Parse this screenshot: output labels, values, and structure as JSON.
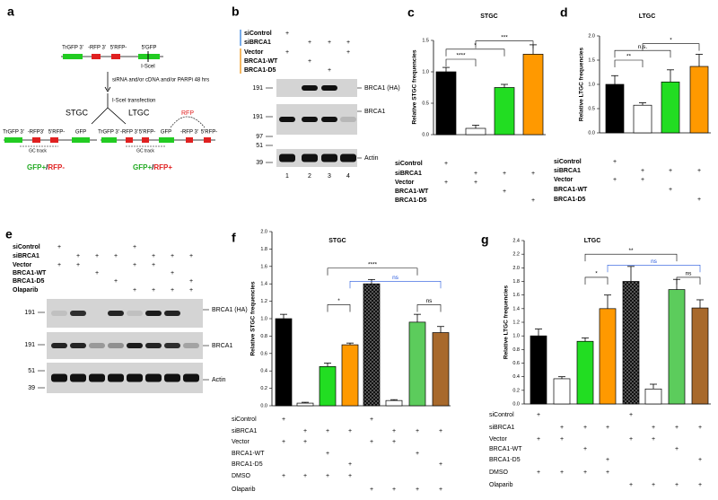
{
  "diagram_a": {
    "letter": "a",
    "reporter": [
      "TrGFP 3'",
      "-RFP 3'",
      "5'RFP-",
      "5'GFP"
    ],
    "site": "I-SceI",
    "steps": [
      "siRNA and/or cDNA and/or PARPi 48 hrs",
      "I-SceI transfection"
    ],
    "outcomes": [
      {
        "label": "STGC",
        "segments": [
          "TrGFP 3'",
          "-RFP3'",
          "5'RFP-",
          "GFP"
        ],
        "track": "GC track",
        "result": [
          "GFP+",
          "/",
          "RFP-"
        ]
      },
      {
        "label": "LTGC",
        "segments": [
          "TrGFP 3'",
          "-RFP 3'",
          "5'RFP-",
          "GFP",
          "-RFP 3'",
          "5'RFP-"
        ],
        "track": "GC track",
        "insert": "RFP",
        "result": [
          "GFP+",
          "/",
          "RFP+"
        ]
      }
    ]
  },
  "blot_b": {
    "letter": "b",
    "conditions": [
      {
        "label": "siControl",
        "marks": [
          "+",
          null,
          null,
          null
        ]
      },
      {
        "label": "siBRCA1",
        "marks": [
          null,
          "+",
          "+",
          "+"
        ]
      },
      {
        "label": "Vector",
        "marks": [
          "+",
          null,
          null,
          "+"
        ]
      },
      {
        "label": "BRCA1-WT",
        "marks": [
          null,
          "+",
          null,
          null
        ]
      },
      {
        "label": "BRCA1-D5",
        "marks": [
          null,
          null,
          "+",
          null
        ]
      }
    ],
    "markers": [
      "191",
      "191",
      "97",
      "51",
      "39"
    ],
    "bands": [
      "BRCA1 (HA)",
      "BRCA1",
      "Actin"
    ],
    "lanes": [
      "1",
      "2",
      "3",
      "4"
    ]
  },
  "blot_e": {
    "letter": "e",
    "conditions": [
      {
        "label": "siControl",
        "marks": [
          "+",
          null,
          null,
          null,
          "+",
          null,
          null,
          null
        ]
      },
      {
        "label": "siBRCA1",
        "marks": [
          null,
          "+",
          "+",
          "+",
          null,
          "+",
          "+",
          "+"
        ]
      },
      {
        "label": "Vector",
        "marks": [
          "+",
          "+",
          null,
          null,
          "+",
          "+",
          null,
          null
        ]
      },
      {
        "label": "BRCA1-WT",
        "marks": [
          null,
          null,
          "+",
          null,
          null,
          null,
          "+",
          null
        ]
      },
      {
        "label": "BRCA1-D5",
        "marks": [
          null,
          null,
          null,
          "+",
          null,
          null,
          null,
          "+"
        ]
      },
      {
        "label": "Olaparib",
        "marks": [
          null,
          null,
          null,
          null,
          "+",
          "+",
          "+",
          "+"
        ]
      }
    ],
    "markers": [
      "191",
      "191",
      "51",
      "39"
    ],
    "bands": [
      "BRCA1 (HA)",
      "BRCA1",
      "Actin"
    ]
  },
  "chart_data": [
    {
      "type": "bar",
      "letter": "c",
      "title": "STGC",
      "ylabel": "Relative STGC frequencies",
      "values": [
        1.0,
        0.1,
        0.75,
        1.28
      ],
      "errors": [
        0.07,
        0.05,
        0.05,
        0.15
      ],
      "colors": [
        "#000000",
        "#ffffff",
        "#22dd22",
        "#ff9900"
      ],
      "ylim": [
        0,
        1.5
      ],
      "yticks": [
        {
          "value": 0,
          "label": "0.0"
        },
        0.5,
        {
          "value": 1,
          "label": "1.0"
        },
        1.5
      ],
      "annotations": [
        "*",
        "****",
        "***"
      ],
      "conditions": [
        {
          "label": "siControl",
          "marks": [
            "+",
            null,
            null,
            null
          ]
        },
        {
          "label": "siBRCA1",
          "marks": [
            null,
            "+",
            "+",
            "+"
          ]
        },
        {
          "label": "Vector",
          "marks": [
            "+",
            "+",
            null,
            null
          ]
        },
        {
          "label": "BRCA1-WT",
          "marks": [
            null,
            null,
            "+",
            null
          ]
        },
        {
          "label": "BRCA1-D5",
          "marks": [
            null,
            null,
            null,
            "+"
          ]
        }
      ]
    },
    {
      "type": "bar",
      "letter": "d",
      "title": "LTGC",
      "ylabel": "Relative LTGC frequencies",
      "values": [
        1.0,
        0.57,
        1.05,
        1.37
      ],
      "errors": [
        0.18,
        0.05,
        0.25,
        0.25
      ],
      "colors": [
        "#000000",
        "#ffffff",
        "#22dd22",
        "#ff9900"
      ],
      "ylim": [
        0,
        2
      ],
      "yticks": [
        {
          "value": 0,
          "label": "0.0"
        },
        0.5,
        {
          "value": 1,
          "label": "1.0"
        },
        1.5,
        {
          "value": 2,
          "label": "2.0"
        }
      ],
      "annotations": [
        "**",
        "n.s.",
        "*"
      ],
      "conditions": [
        {
          "label": "siControl",
          "marks": [
            "+",
            null,
            null,
            null
          ]
        },
        {
          "label": "siBRCA1",
          "marks": [
            null,
            "+",
            "+",
            "+"
          ]
        },
        {
          "label": "Vector",
          "marks": [
            "+",
            "+",
            null,
            null
          ]
        },
        {
          "label": "BRCA1-WT",
          "marks": [
            null,
            null,
            "+",
            null
          ]
        },
        {
          "label": "BRCA1-D5",
          "marks": [
            null,
            null,
            null,
            "+"
          ]
        }
      ]
    },
    {
      "type": "bar",
      "letter": "f",
      "title": "STGC",
      "ylabel": "Relative STGC frequencies",
      "values": [
        1.0,
        0.03,
        0.45,
        0.7,
        1.4,
        0.06,
        0.96,
        0.84
      ],
      "errors": [
        0.05,
        0.01,
        0.04,
        0.02,
        0.05,
        0.01,
        0.09,
        0.07
      ],
      "colors": [
        "#000000",
        "#ffffff",
        "#22dd22",
        "#ff9900",
        "#333333",
        "#ffffff",
        "#5ccc5c",
        "#a8692c"
      ],
      "patterns": [
        null,
        null,
        null,
        null,
        "checkered",
        null,
        null,
        null
      ],
      "ylim": [
        0,
        2
      ],
      "yticks": [
        {
          "value": 0,
          "label": "0.0"
        },
        0.2,
        0.4,
        0.6,
        0.8,
        {
          "value": 1,
          "label": "1.0"
        },
        1.2,
        1.4,
        1.6,
        1.8,
        {
          "value": 2,
          "label": "2.0"
        }
      ],
      "annotations": [
        "*",
        "****",
        "ns",
        "ns"
      ],
      "conditions": [
        {
          "label": "siControl",
          "marks": [
            "+",
            null,
            null,
            null,
            "+",
            null,
            null,
            null
          ]
        },
        {
          "label": "siBRCA1",
          "marks": [
            null,
            "+",
            "+",
            "+",
            null,
            "+",
            "+",
            "+"
          ]
        },
        {
          "label": "Vector",
          "marks": [
            "+",
            "+",
            null,
            null,
            "+",
            "+",
            null,
            null
          ]
        },
        {
          "label": "BRCA1-WT",
          "marks": [
            null,
            null,
            "+",
            null,
            null,
            null,
            "+",
            null
          ]
        },
        {
          "label": "BRCA1-D5",
          "marks": [
            null,
            null,
            null,
            "+",
            null,
            null,
            null,
            "+"
          ]
        },
        {
          "label": "DMSO",
          "marks": [
            "+",
            "+",
            "+",
            "+",
            null,
            null,
            null,
            null
          ]
        },
        {
          "label": "Olaparib",
          "marks": [
            null,
            null,
            null,
            null,
            "+",
            "+",
            "+",
            "+"
          ]
        }
      ]
    },
    {
      "type": "bar",
      "letter": "g",
      "title": "LTGC",
      "ylabel": "Relative LTGC frequencies",
      "values": [
        1.0,
        0.37,
        0.92,
        1.4,
        1.8,
        0.22,
        1.68,
        1.41
      ],
      "errors": [
        0.1,
        0.03,
        0.05,
        0.2,
        0.22,
        0.07,
        0.15,
        0.12
      ],
      "colors": [
        "#000000",
        "#ffffff",
        "#22dd22",
        "#ff9900",
        "#333333",
        "#ffffff",
        "#5ccc5c",
        "#a8692c"
      ],
      "patterns": [
        null,
        null,
        null,
        null,
        "checkered",
        null,
        null,
        null
      ],
      "ylim": [
        0,
        2.4
      ],
      "yticks": [
        {
          "value": 0,
          "label": "0.0"
        },
        0.2,
        0.4,
        0.6,
        0.8,
        {
          "value": 1,
          "label": "1.0"
        },
        1.2,
        1.4,
        1.6,
        1.8,
        {
          "value": 2,
          "label": "2.0"
        },
        2.2,
        2.4
      ],
      "annotations": [
        "*",
        "**",
        "ns",
        "ns"
      ],
      "conditions": [
        {
          "label": "siControl",
          "marks": [
            "+",
            null,
            null,
            null,
            "+",
            null,
            null,
            null
          ]
        },
        {
          "label": "siBRCA1",
          "marks": [
            null,
            "+",
            "+",
            "+",
            null,
            "+",
            "+",
            "+"
          ]
        },
        {
          "label": "Vector",
          "marks": [
            "+",
            "+",
            null,
            null,
            "+",
            "+",
            null,
            null
          ]
        },
        {
          "label": "BRCA1-WT",
          "marks": [
            null,
            null,
            "+",
            null,
            null,
            null,
            "+",
            null
          ]
        },
        {
          "label": "BRCA1-D5",
          "marks": [
            null,
            null,
            null,
            "+",
            null,
            null,
            null,
            "+"
          ]
        },
        {
          "label": "DMSO",
          "marks": [
            "+",
            "+",
            "+",
            "+",
            null,
            null,
            null,
            null
          ]
        },
        {
          "label": "Olaparib",
          "marks": [
            null,
            null,
            null,
            null,
            "+",
            "+",
            "+",
            "+"
          ]
        }
      ]
    }
  ]
}
